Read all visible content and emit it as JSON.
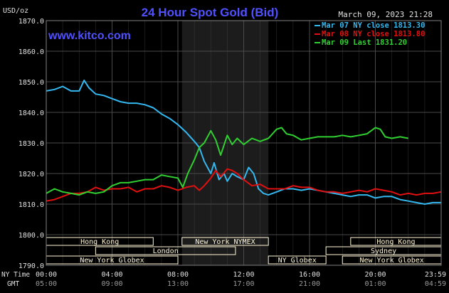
{
  "header": {
    "unit": "USD/oz",
    "title": "24 Hour Spot Gold (Bid)",
    "date": "March 09, 2023 21:28",
    "site": "www.kitco.com"
  },
  "colors": {
    "background": "#000000",
    "plot": "#000000",
    "night_band": "#1c1c1c",
    "grid": "#4a4a4a",
    "axis_text": "#e0e0e0",
    "title": "#5050ff",
    "site": "#5050ff",
    "session_bar": "#fff6d5",
    "series_1": "#33b8f0",
    "series_2": "#e01010",
    "series_3": "#30d030"
  },
  "axis_labels": {
    "ny_time": "NY Time",
    "gmt": "GMT"
  },
  "sessions": [
    {
      "name": "Hong Kong",
      "start": 0.0,
      "end": 6.5
    },
    {
      "name": "London",
      "start": 3.0,
      "end": 11.5
    },
    {
      "name": "New York Globex",
      "start": 0.0,
      "end": 8.0
    },
    {
      "name": "New York NYMEX",
      "start": 8.25,
      "end": 13.5
    },
    {
      "name": "NY Globex",
      "start": 13.5,
      "end": 17.0
    },
    {
      "name": "Hong Kong",
      "start": 18.5,
      "end": 24.0
    },
    {
      "name": "Sydney",
      "start": 17.0,
      "end": 24.0
    },
    {
      "name": "New York Globex",
      "start": 18.0,
      "end": 24.0
    }
  ],
  "chart_data": {
    "type": "line",
    "title": "24 Hour Spot Gold (Bid)",
    "ylabel": "USD/oz",
    "ylim": [
      1790,
      1870
    ],
    "yticks": [
      "1870.0",
      "1860.0",
      "1850.0",
      "1840.0",
      "1830.0",
      "1820.0",
      "1810.0",
      "1800.0",
      "1790.0"
    ],
    "xlim": [
      0,
      24
    ],
    "xticks_ny": [
      "00:00",
      "04:00",
      "08:00",
      "12:00",
      "16:00",
      "20:00",
      "23:59"
    ],
    "xticks_gmt": [
      "05:00",
      "09:00",
      "13:00",
      "17:00",
      "21:00",
      "01:00",
      "04:59"
    ],
    "grid": true,
    "shaded_region": [
      8.25,
      13.5
    ],
    "legend_position": "top-right",
    "series": [
      {
        "name": "Mar 07 NY close 1813.30",
        "x": [
          0,
          0.5,
          1,
          1.5,
          2,
          2.3,
          2.6,
          3,
          3.5,
          4,
          4.5,
          5,
          5.5,
          6,
          6.5,
          7,
          7.5,
          8,
          8.5,
          9,
          9.3,
          9.6,
          10,
          10.2,
          10.5,
          10.8,
          11,
          11.3,
          11.6,
          12,
          12.3,
          12.6,
          12.9,
          13.2,
          13.5,
          14,
          14.5,
          15,
          15.5,
          16,
          16.5,
          17,
          17.5,
          18,
          18.5,
          19,
          19.5,
          20,
          20.5,
          21,
          21.5,
          22,
          22.5,
          23,
          23.5,
          24
        ],
        "y": [
          1847,
          1847.5,
          1848.5,
          1847,
          1847,
          1850.5,
          1848,
          1846,
          1845.5,
          1844.5,
          1843.5,
          1843,
          1843,
          1842.5,
          1841.5,
          1839.5,
          1838,
          1836,
          1833.5,
          1830.5,
          1828.5,
          1824,
          1820,
          1823.5,
          1818,
          1820,
          1817.5,
          1820,
          1819,
          1818,
          1822,
          1820,
          1815,
          1813.5,
          1813,
          1814,
          1815,
          1815,
          1814.5,
          1815,
          1814.5,
          1814,
          1813.5,
          1813,
          1812.5,
          1813,
          1813,
          1812,
          1812.5,
          1812.5,
          1811.5,
          1811,
          1810.5,
          1810,
          1810.5,
          1810.5
        ]
      },
      {
        "name": "Mar 08 NY close 1813.80",
        "x": [
          0,
          0.5,
          1,
          1.5,
          2,
          2.5,
          3,
          3.5,
          4,
          4.5,
          5,
          5.5,
          6,
          6.5,
          7,
          7.5,
          8,
          8.5,
          9,
          9.3,
          9.6,
          10,
          10.3,
          10.6,
          11,
          11.3,
          11.6,
          12,
          12.5,
          13,
          13.5,
          14,
          14.5,
          15,
          15.5,
          16,
          16.5,
          17,
          17.5,
          18,
          18.5,
          19,
          19.5,
          20,
          20.5,
          21,
          21.5,
          22,
          22.5,
          23,
          23.5,
          24
        ],
        "y": [
          1811,
          1811.5,
          1812.5,
          1813.5,
          1813.5,
          1814,
          1815.5,
          1814.5,
          1815,
          1815,
          1815.5,
          1814,
          1815,
          1815,
          1816,
          1815.5,
          1814.5,
          1815.5,
          1816,
          1814.5,
          1816,
          1818.5,
          1821,
          1819,
          1821.5,
          1821,
          1820,
          1818,
          1816,
          1816.5,
          1815,
          1815,
          1815,
          1816,
          1815.5,
          1815.5,
          1814.5,
          1814,
          1814,
          1813.5,
          1814,
          1814.5,
          1814,
          1815,
          1814.5,
          1814,
          1813,
          1813.5,
          1813,
          1813.5,
          1813.5,
          1814
        ]
      },
      {
        "name": "Mar 09 Last 1831.20",
        "x": [
          0,
          0.5,
          1,
          1.5,
          2,
          2.5,
          3,
          3.5,
          4,
          4.5,
          5,
          5.5,
          6,
          6.5,
          7,
          7.5,
          8,
          8.3,
          8.6,
          9,
          9.3,
          9.6,
          10,
          10.3,
          10.6,
          11,
          11.3,
          11.6,
          12,
          12.5,
          13,
          13.5,
          14,
          14.3,
          14.6,
          15,
          15.5,
          16,
          16.5,
          17,
          17.5,
          18,
          18.5,
          19,
          19.5,
          20,
          20.3,
          20.6,
          21,
          21.5,
          22
        ],
        "y": [
          1813.5,
          1815,
          1814,
          1813.5,
          1813,
          1814,
          1813.5,
          1814,
          1816,
          1817,
          1817,
          1817.5,
          1818,
          1818,
          1819.5,
          1819,
          1818.5,
          1815.5,
          1820,
          1824.5,
          1828.5,
          1830,
          1834,
          1831,
          1826,
          1832.5,
          1829.5,
          1831.5,
          1829.5,
          1831.5,
          1830.5,
          1831.5,
          1834.5,
          1835,
          1833,
          1832.5,
          1831,
          1831.5,
          1832,
          1832,
          1832,
          1832.5,
          1832,
          1832.5,
          1833,
          1835,
          1834.5,
          1832,
          1831.5,
          1832,
          1831.5
        ]
      }
    ]
  }
}
